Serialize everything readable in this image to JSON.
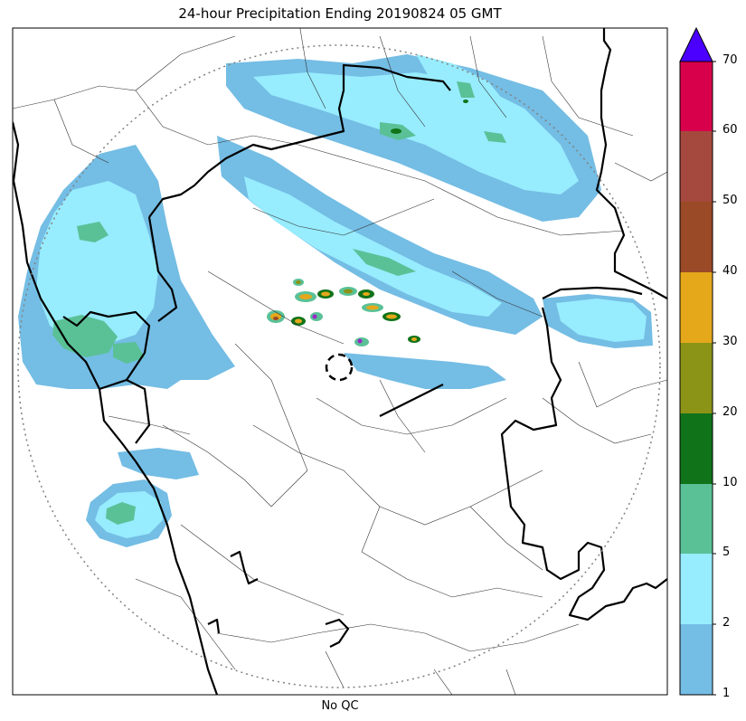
{
  "map": {
    "title": "24-hour Precipitation Ending 20190824 05 GMT",
    "subtitle": "No QC"
  },
  "colorbar": {
    "ticks": [
      "1",
      "2",
      "5",
      "10",
      "20",
      "30",
      "40",
      "50",
      "60",
      "70"
    ],
    "colors": [
      "#74bde4",
      "#97ecfe",
      "#5ac197",
      "#107319",
      "#8c9418",
      "#e5a81b",
      "#9a4a26",
      "#a5493e",
      "#d8004a"
    ],
    "extend_color": "#4b00ff"
  },
  "colors": {
    "light_blue": "#74bde4",
    "cyan": "#97ecfe",
    "green": "#5ac197",
    "dark_green": "#107319",
    "olive": "#8c9418",
    "orange": "#e5a81b",
    "brown": "#9a4a26",
    "purple": "#9c27c8",
    "range_ring": "#808080"
  }
}
